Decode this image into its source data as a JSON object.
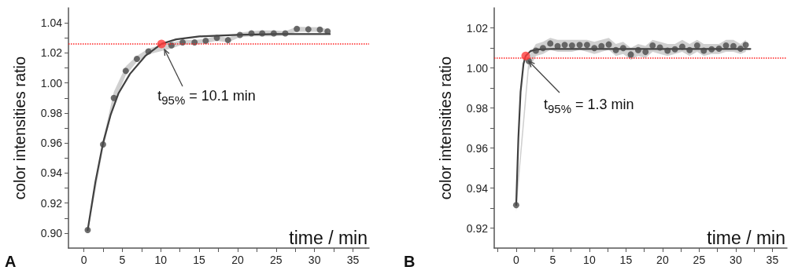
{
  "chart_data": [
    {
      "type": "scatter",
      "xlabel": "time / min",
      "ylabel": "color intensities ratio",
      "xlim": [
        -2,
        37.1
      ],
      "ylim": [
        0.89,
        1.05
      ],
      "grid": false,
      "xticks": [
        0,
        {
          "value": 2.5,
          "label": null
        },
        5,
        {
          "value": 7.5,
          "label": null
        },
        10,
        {
          "value": 12.5,
          "label": null
        },
        15,
        {
          "value": 17.5,
          "label": null
        },
        20,
        {
          "value": 22.5,
          "label": null
        },
        25,
        {
          "value": 27.5,
          "label": null
        },
        30,
        {
          "value": 32.5,
          "label": null
        },
        35
      ],
      "yticks": [
        {
          "value": 0.9,
          "label": "0.90"
        },
        {
          "value": 0.91,
          "label": null
        },
        0.92,
        {
          "value": 0.93,
          "label": null
        },
        0.94,
        {
          "value": 0.95,
          "label": null
        },
        0.96,
        {
          "value": 0.97,
          "label": null
        },
        0.98,
        {
          "value": 0.99,
          "label": null
        },
        {
          "value": 1.0,
          "label": "1.00"
        },
        {
          "value": 1.01,
          "label": null
        },
        1.02,
        {
          "value": 1.03,
          "label": null
        },
        1.04
      ],
      "annotations": [
        "A",
        {
          "text": "t$_{95%}$ = 10.1 min",
          "x": 10.1,
          "y": 1.026
        }
      ],
      "ref_lines": [
        {
          "axis": "y",
          "value": 1.026,
          "color": "#ff2020",
          "line_style": "dotted"
        }
      ],
      "series": [
        {
          "type": "scatter",
          "color": "#4a4a4a",
          "marker": "circle",
          "x": [
            0.5,
            2.5,
            3.9,
            5.45,
            6.9,
            8.4,
            11.4,
            12.85,
            14.4,
            15.85,
            17.3,
            18.75,
            20.3,
            21.8,
            23.2,
            24.7,
            26.2,
            27.7,
            29.2,
            30.7,
            31.7
          ],
          "values": [
            0.902,
            0.959,
            0.99,
            1.008,
            1.016,
            1.021,
            1.025,
            1.027,
            1.027,
            1.028,
            1.03,
            1.0285,
            1.032,
            1.033,
            1.033,
            1.033,
            1.033,
            1.036,
            1.0357,
            1.0355,
            1.0343
          ],
          "lower": [
            0.9,
            0.956,
            0.986,
            1.005,
            1.014,
            1.019,
            1.023,
            1.0255,
            1.0255,
            1.0265,
            1.028,
            1.027,
            1.0305,
            1.031,
            1.031,
            1.031,
            1.0315,
            1.034,
            1.034,
            1.034,
            1.033
          ],
          "upper": [
            0.904,
            0.962,
            0.994,
            1.011,
            1.018,
            1.023,
            1.027,
            1.0285,
            1.0285,
            1.0295,
            1.0315,
            1.03,
            1.0335,
            1.0345,
            1.035,
            1.035,
            1.0345,
            1.0375,
            1.0372,
            1.037,
            1.0358
          ]
        },
        {
          "type": "line",
          "color": "#404040",
          "marker": "none",
          "x": [
            0.5,
            1.5,
            2.5,
            3.5,
            4.5,
            6,
            8,
            10.1,
            12,
            15,
            20,
            25,
            32
          ],
          "values": [
            0.902,
            0.934,
            0.96,
            0.979,
            0.993,
            1.006,
            1.018,
            1.026,
            1.029,
            1.031,
            1.032,
            1.0325,
            1.0325
          ]
        },
        {
          "type": "scatter",
          "color": "#ff3b3b",
          "marker": "circle",
          "x": [
            10.1
          ],
          "values": [
            1.026
          ]
        }
      ]
    },
    {
      "type": "scatter",
      "xlabel": "time / min",
      "ylabel": "color intensities ratio",
      "xlim": [
        -3,
        37
      ],
      "ylim": [
        0.91,
        1.03
      ],
      "grid": false,
      "xticks": [
        {
          "value": -2.5,
          "label": null
        },
        0,
        {
          "value": 2.5,
          "label": null
        },
        5,
        {
          "value": 7.5,
          "label": null
        },
        10,
        {
          "value": 12.5,
          "label": null
        },
        15,
        {
          "value": 17.5,
          "label": null
        },
        20,
        {
          "value": 22.5,
          "label": null
        },
        25,
        {
          "value": 27.5,
          "label": null
        },
        30,
        {
          "value": 32.5,
          "label": null
        },
        35
      ],
      "yticks": [
        0.92,
        {
          "value": 0.93,
          "label": null
        },
        0.94,
        {
          "value": 0.95,
          "label": null
        },
        0.96,
        {
          "value": 0.97,
          "label": null
        },
        0.98,
        {
          "value": 0.99,
          "label": null
        },
        {
          "value": 1.0,
          "label": "1.00"
        },
        {
          "value": 1.01,
          "label": null
        },
        1.02
      ],
      "annotations": [
        "B",
        {
          "text": "t$_{95%}$ = 1.3 min",
          "x": 1.3,
          "y": 1.006
        }
      ],
      "ref_lines": [
        {
          "axis": "y",
          "value": 1.005,
          "color": "#ff2020",
          "line_style": "dotted"
        }
      ],
      "series": [
        {
          "type": "scatter",
          "color": "#4a4a4a",
          "marker": "circle",
          "x": [
            0,
            1.72,
            2.69,
            3.66,
            4.66,
            5.66,
            6.63,
            7.63,
            8.67,
            9.68,
            10.68,
            11.65,
            12.65,
            13.62,
            14.62,
            15.66,
            16.67,
            17.67,
            18.64,
            19.64,
            20.68,
            21.69,
            22.69,
            23.69,
            24.73,
            25.63,
            26.7,
            27.71,
            28.67,
            29.68,
            30.65,
            31.37
          ],
          "values": [
            0.9315,
            1.0034,
            1.0086,
            1.0099,
            1.0122,
            1.0109,
            1.0115,
            1.0112,
            1.0115,
            1.0115,
            1.0099,
            1.0109,
            1.0117,
            1.0089,
            1.0099,
            1.0067,
            1.0089,
            1.008,
            1.0112,
            1.0102,
            1.0086,
            1.0093,
            1.0106,
            1.0089,
            1.0112,
            1.0086,
            1.0093,
            1.0096,
            1.0112,
            1.0109,
            1.0096,
            1.0115
          ],
          "lower": [
            0.928,
            0.999,
            1.006,
            1.007,
            1.009,
            1.008,
            1.008,
            1.008,
            1.009,
            1.008,
            1.007,
            1.008,
            1.009,
            1.006,
            1.007,
            1.004,
            1.006,
            1.005,
            1.008,
            1.007,
            1.006,
            1.007,
            1.008,
            1.006,
            1.008,
            1.006,
            1.007,
            1.007,
            1.008,
            1.008,
            1.007,
            1.008
          ],
          "upper": [
            0.935,
            1.006,
            1.012,
            1.013,
            1.015,
            1.014,
            1.014,
            1.014,
            1.014,
            1.014,
            1.013,
            1.014,
            1.015,
            1.012,
            1.013,
            1.01,
            1.012,
            1.011,
            1.014,
            1.013,
            1.012,
            1.012,
            1.014,
            1.012,
            1.014,
            1.012,
            1.012,
            1.012,
            1.014,
            1.014,
            1.012,
            1.014
          ]
        },
        {
          "type": "line",
          "color": "#404040",
          "marker": "none",
          "x": [
            0,
            0.3,
            0.6,
            1.0,
            1.3,
            2,
            3,
            5,
            32
          ],
          "values": [
            0.9315,
            0.965,
            0.988,
            1.002,
            1.006,
            1.0085,
            1.0093,
            1.0095,
            1.0095
          ]
        },
        {
          "type": "scatter",
          "color": "#ff3b3b",
          "marker": "circle",
          "x": [
            1.3
          ],
          "values": [
            1.006
          ]
        }
      ]
    }
  ]
}
